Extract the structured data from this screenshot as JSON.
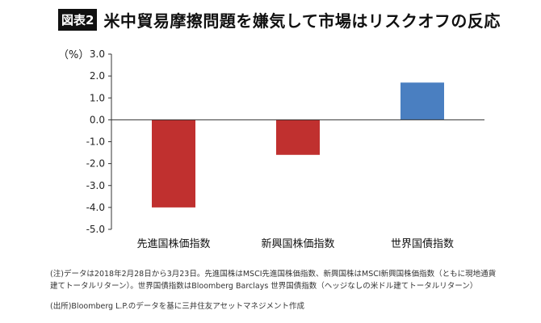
{
  "header": {
    "badge": "図表2",
    "title": "米中貿易摩擦問題を嫌気して市場はリスクオフの反応"
  },
  "chart_data": {
    "type": "bar",
    "ylabel": "（%）",
    "ylim": [
      -5.0,
      3.0
    ],
    "yticks": [
      "3.0",
      "2.0",
      "1.0",
      "0.0",
      "-1.0",
      "-2.0",
      "-3.0",
      "-4.0",
      "-5.0"
    ],
    "grid": false,
    "categories": [
      "先進国株価指数",
      "新興国株価指数",
      "世界国債指数"
    ],
    "values": [
      -4.0,
      -1.6,
      1.7
    ],
    "colors": [
      "#c0302f",
      "#c0302f",
      "#4a7fc1"
    ]
  },
  "notes": {
    "note1": "(注)データは2018年2月28日から3月23日。先進国株はMSCI先進国株価指数、新興国株はMSCI新興国株価指数（ともに現地通貨建てトータルリターン）。世界国債指数はBloomberg Barclays 世界国債指数（ヘッジなしの米ドル建てトータルリターン）",
    "source": "(出所)Bloomberg L.P.のデータを基に三井住友アセットマネジメント作成"
  }
}
